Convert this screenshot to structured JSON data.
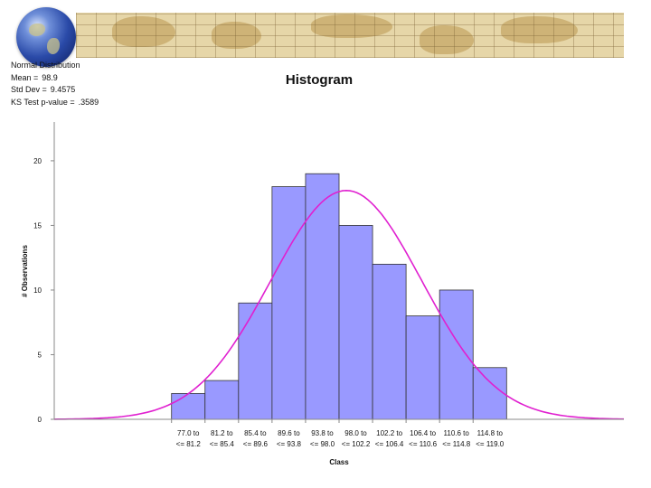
{
  "stats": {
    "distribution": "Normal Distribution",
    "mean_label": "Mean =",
    "mean_value": "98.9",
    "sd_label": "Std Dev =",
    "sd_value": "9.4575",
    "ks_label": "KS Test p-value =",
    "ks_value": ".3589"
  },
  "colors": {
    "bar": "#9999ff",
    "curve": "#e020d0",
    "banner": "#e6d6a8"
  },
  "chart_data": {
    "type": "bar",
    "title": "Histogram",
    "xlabel": "Class",
    "ylabel": "# Observations",
    "ylim": [
      0,
      23
    ],
    "yticks": [
      0,
      5,
      10,
      15,
      20
    ],
    "categories": [
      [
        "77.0 to",
        "<= 81.2"
      ],
      [
        "81.2 to",
        "<= 85.4"
      ],
      [
        "85.4 to",
        "<= 89.6"
      ],
      [
        "89.6 to",
        "<= 93.8"
      ],
      [
        "93.8 to",
        "<= 98.0"
      ],
      [
        "98.0 to",
        "<= 102.2"
      ],
      [
        "102.2 to",
        "<= 106.4"
      ],
      [
        "106.4 to",
        "<= 110.6"
      ],
      [
        "110.6 to",
        "<= 114.8"
      ],
      [
        "114.8 to",
        "<= 119.0"
      ]
    ],
    "values": [
      2,
      3,
      9,
      18,
      19,
      15,
      12,
      8,
      10,
      4
    ],
    "bin_edges": [
      77.0,
      81.2,
      85.4,
      89.6,
      93.8,
      98.0,
      102.2,
      106.4,
      110.6,
      114.8,
      119.0
    ],
    "xlim": [
      62.3,
      133.7
    ],
    "fit_curve": {
      "distribution": "normal",
      "mean": 98.9,
      "sd": 9.4575,
      "peak": 17.7
    },
    "grid": false
  }
}
